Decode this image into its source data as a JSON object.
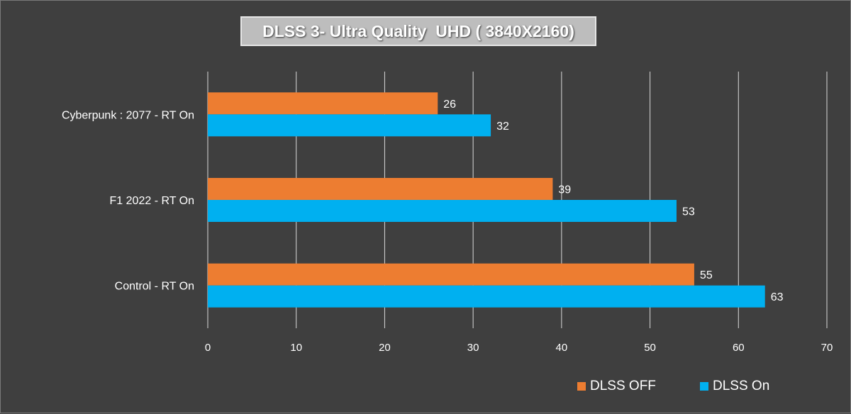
{
  "chart_data": {
    "type": "bar",
    "orientation": "horizontal",
    "title": "DLSS 3- Ultra Quality  UHD ( 3840X2160)",
    "categories": [
      "Cyberpunk : 2077 - RT On",
      "F1 2022 - RT On",
      "Control - RT On"
    ],
    "series": [
      {
        "name": "DLSS OFF",
        "color": "#ed7d31",
        "values": [
          26,
          39,
          55
        ]
      },
      {
        "name": "DLSS On",
        "color": "#00b0f0",
        "values": [
          32,
          53,
          63
        ]
      }
    ],
    "xlim": [
      0,
      70
    ],
    "xticks": [
      "0",
      "10",
      "20",
      "30",
      "40",
      "50",
      "60",
      "70"
    ],
    "grid": true,
    "legend_position": "bottom-right"
  }
}
